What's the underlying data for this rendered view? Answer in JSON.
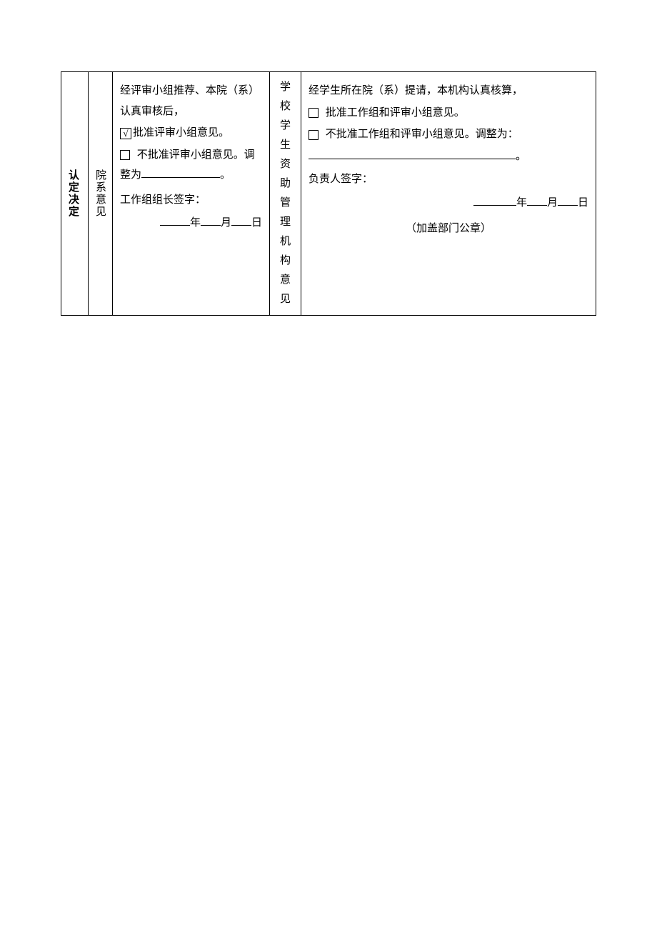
{
  "table": {
    "col1_label": "认定决定",
    "col2_label": "院系意见",
    "col3": {
      "line1": "经评审小组推荐、本院（系）认真审核后，",
      "checkbox1_checked": true,
      "checkbox1_mark": "√",
      "checkbox1_text": "批准评审小组意见。",
      "checkbox2_text": "不批准评审小组意见。调整为",
      "period": "。",
      "sign_label": "工作组组长签字：",
      "year": "年",
      "month": "月",
      "day": "日"
    },
    "col4_label": "学校学生资助管理机构意见",
    "col5": {
      "line1": "经学生所在院（系）提请，本机构认真核算，",
      "checkbox1_text": "批准工作组和评审小组意见。",
      "checkbox2_text": "不批准工作组和评审小组意见。调整为：",
      "period": "。",
      "sign_label": "负责人签字：",
      "year": "年",
      "month": "月",
      "day": "日",
      "stamp": "（加盖部门公章）"
    }
  }
}
